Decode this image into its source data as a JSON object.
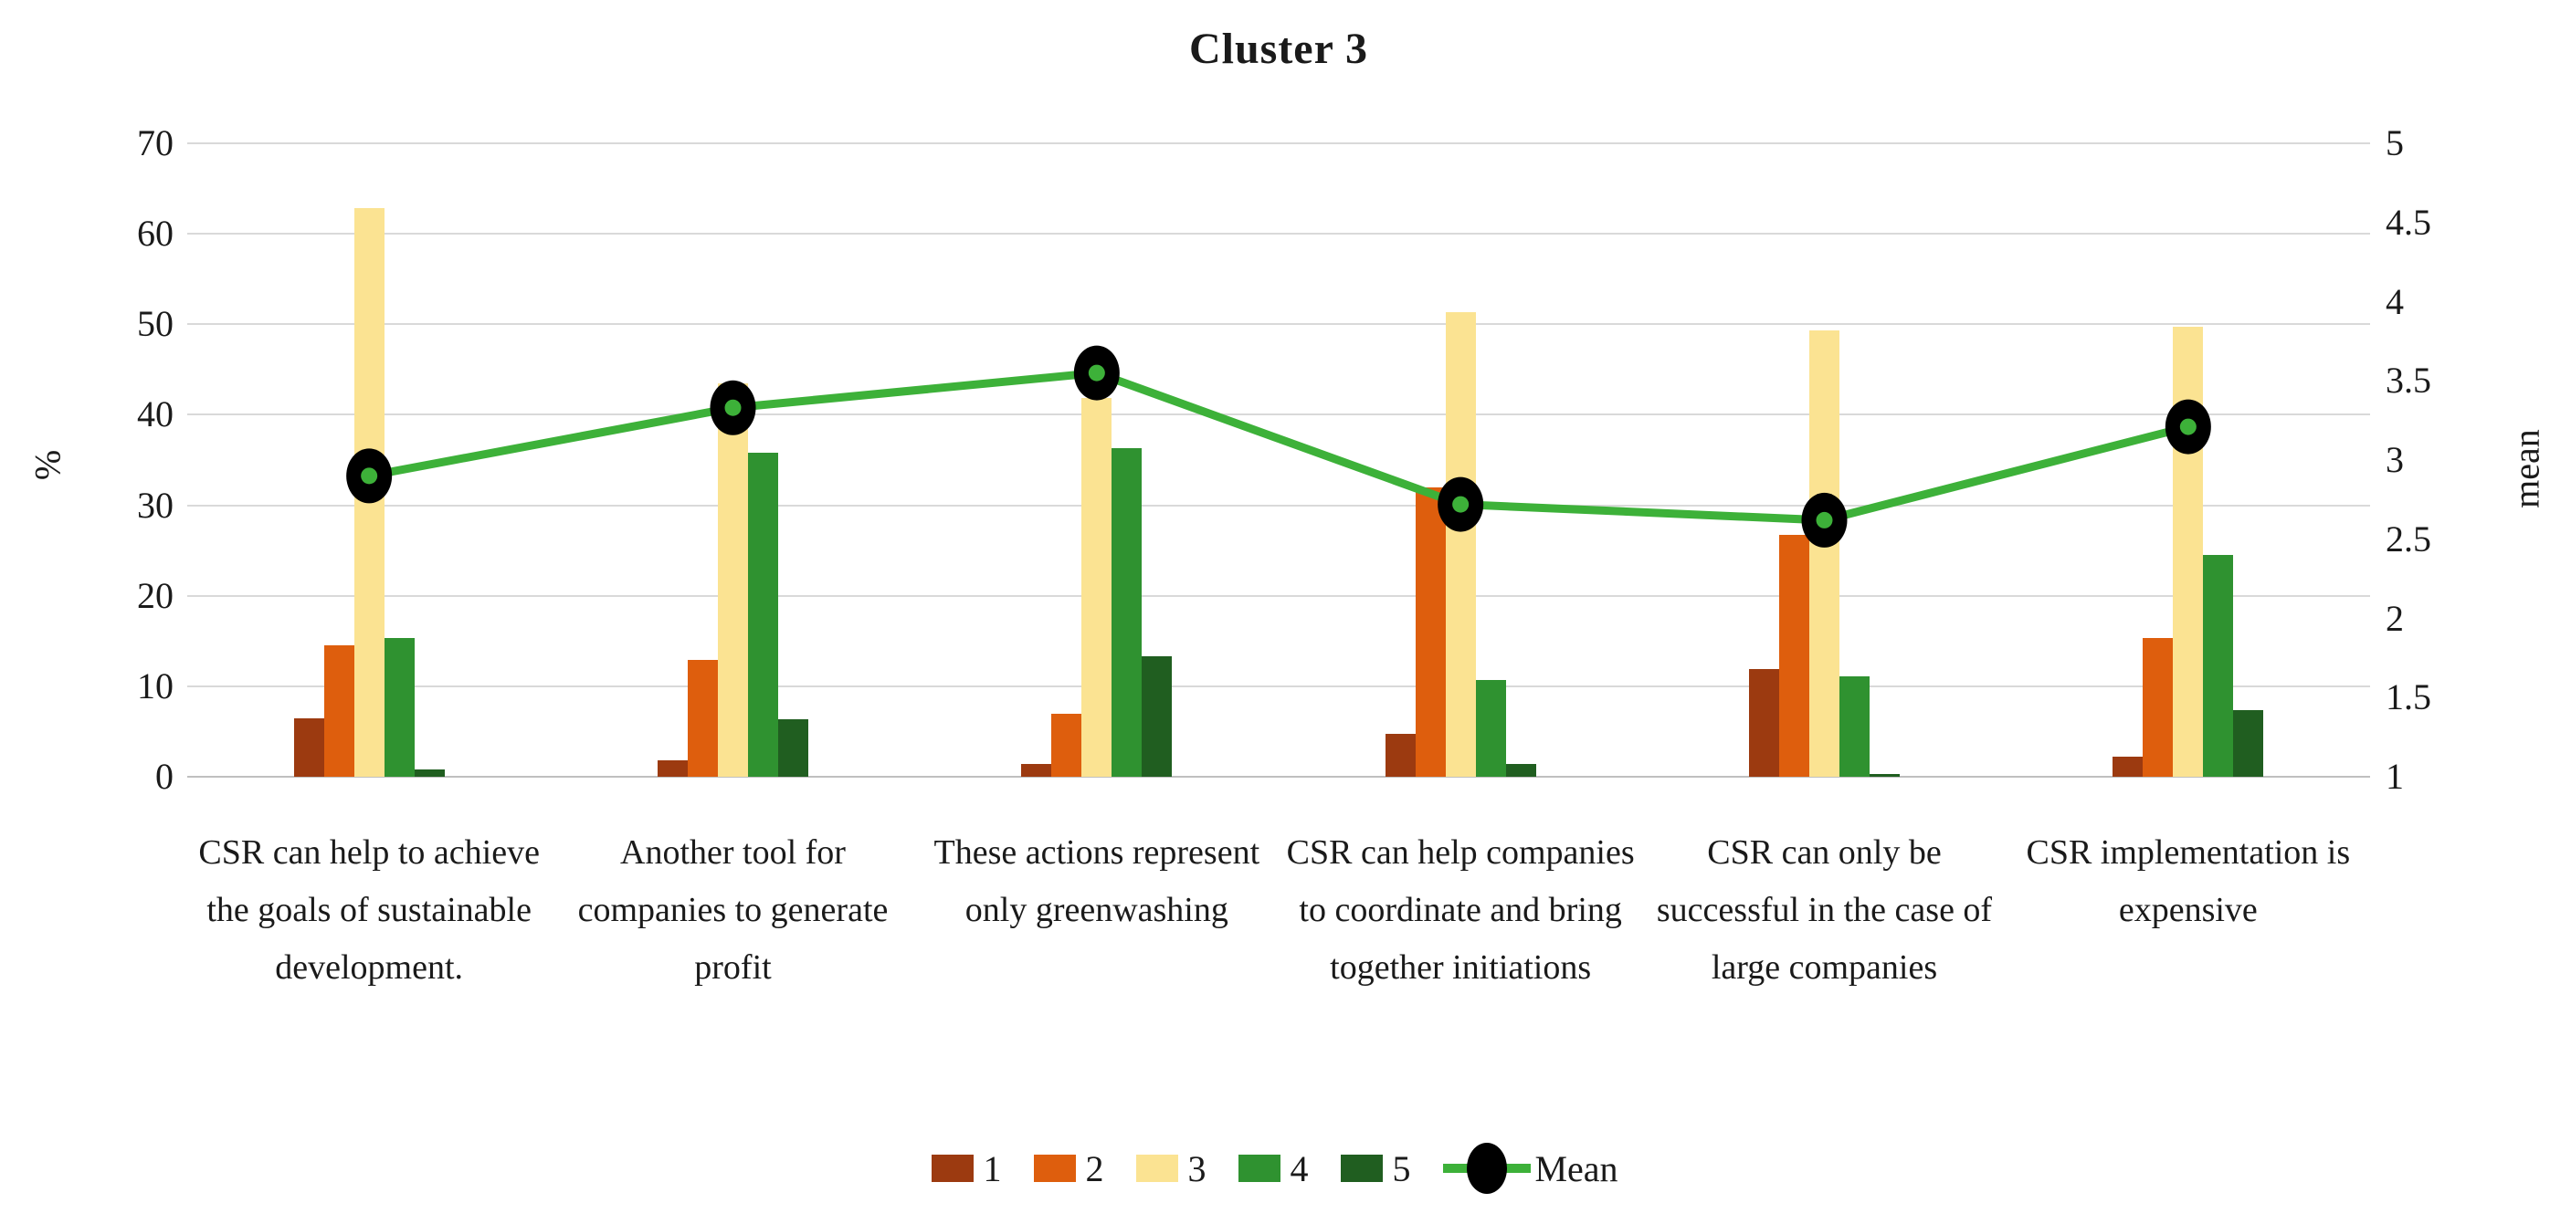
{
  "chart_data": {
    "type": "bar",
    "title": "Cluster 3",
    "categories": [
      "CSR can help to achieve the goals of sustainable development.",
      "Another tool for companies to generate profit",
      "These actions represent only greenwashing",
      "CSR can help companies to coordinate and bring together initiations",
      "CSR can only be successful in the case of large companies",
      "CSR implementation is expensive"
    ],
    "series": [
      {
        "name": "1",
        "color": "#9C3A10",
        "values": [
          6.5,
          1.8,
          1.4,
          4.7,
          11.9,
          2.2
        ]
      },
      {
        "name": "2",
        "color": "#DE5E0D",
        "values": [
          14.5,
          12.9,
          7.0,
          32.0,
          26.7,
          15.3
        ]
      },
      {
        "name": "3",
        "color": "#FBE392",
        "values": [
          62.8,
          43.5,
          41.9,
          51.3,
          49.3,
          49.7
        ]
      },
      {
        "name": "4",
        "color": "#2F9230",
        "values": [
          15.3,
          35.8,
          36.3,
          10.7,
          11.1,
          24.5
        ]
      },
      {
        "name": "5",
        "color": "#205E20",
        "values": [
          0.8,
          6.4,
          13.3,
          1.4,
          0.3,
          7.4
        ]
      }
    ],
    "mean_series": {
      "name": "Mean",
      "values": [
        2.9,
        3.33,
        3.55,
        2.72,
        2.62,
        3.21
      ],
      "line_color": "#3DB139",
      "marker_color": "#000000",
      "marker_center_color": "#3DB139"
    },
    "left_axis": {
      "label": "%",
      "min": 0,
      "max": 70,
      "ticks": [
        70,
        60,
        50,
        40,
        30,
        20,
        10,
        0
      ]
    },
    "right_axis": {
      "label": "mean",
      "min": 1,
      "max": 5,
      "ticks": [
        5,
        4.5,
        4,
        3.5,
        3,
        2.5,
        2,
        1.5,
        1
      ]
    },
    "grid": true,
    "gridline_color": "#D9D9D9",
    "baseline_color": "#BFBFBF",
    "legend_position": "bottom",
    "legend_entries": [
      "1",
      "2",
      "3",
      "4",
      "5",
      "Mean"
    ]
  }
}
